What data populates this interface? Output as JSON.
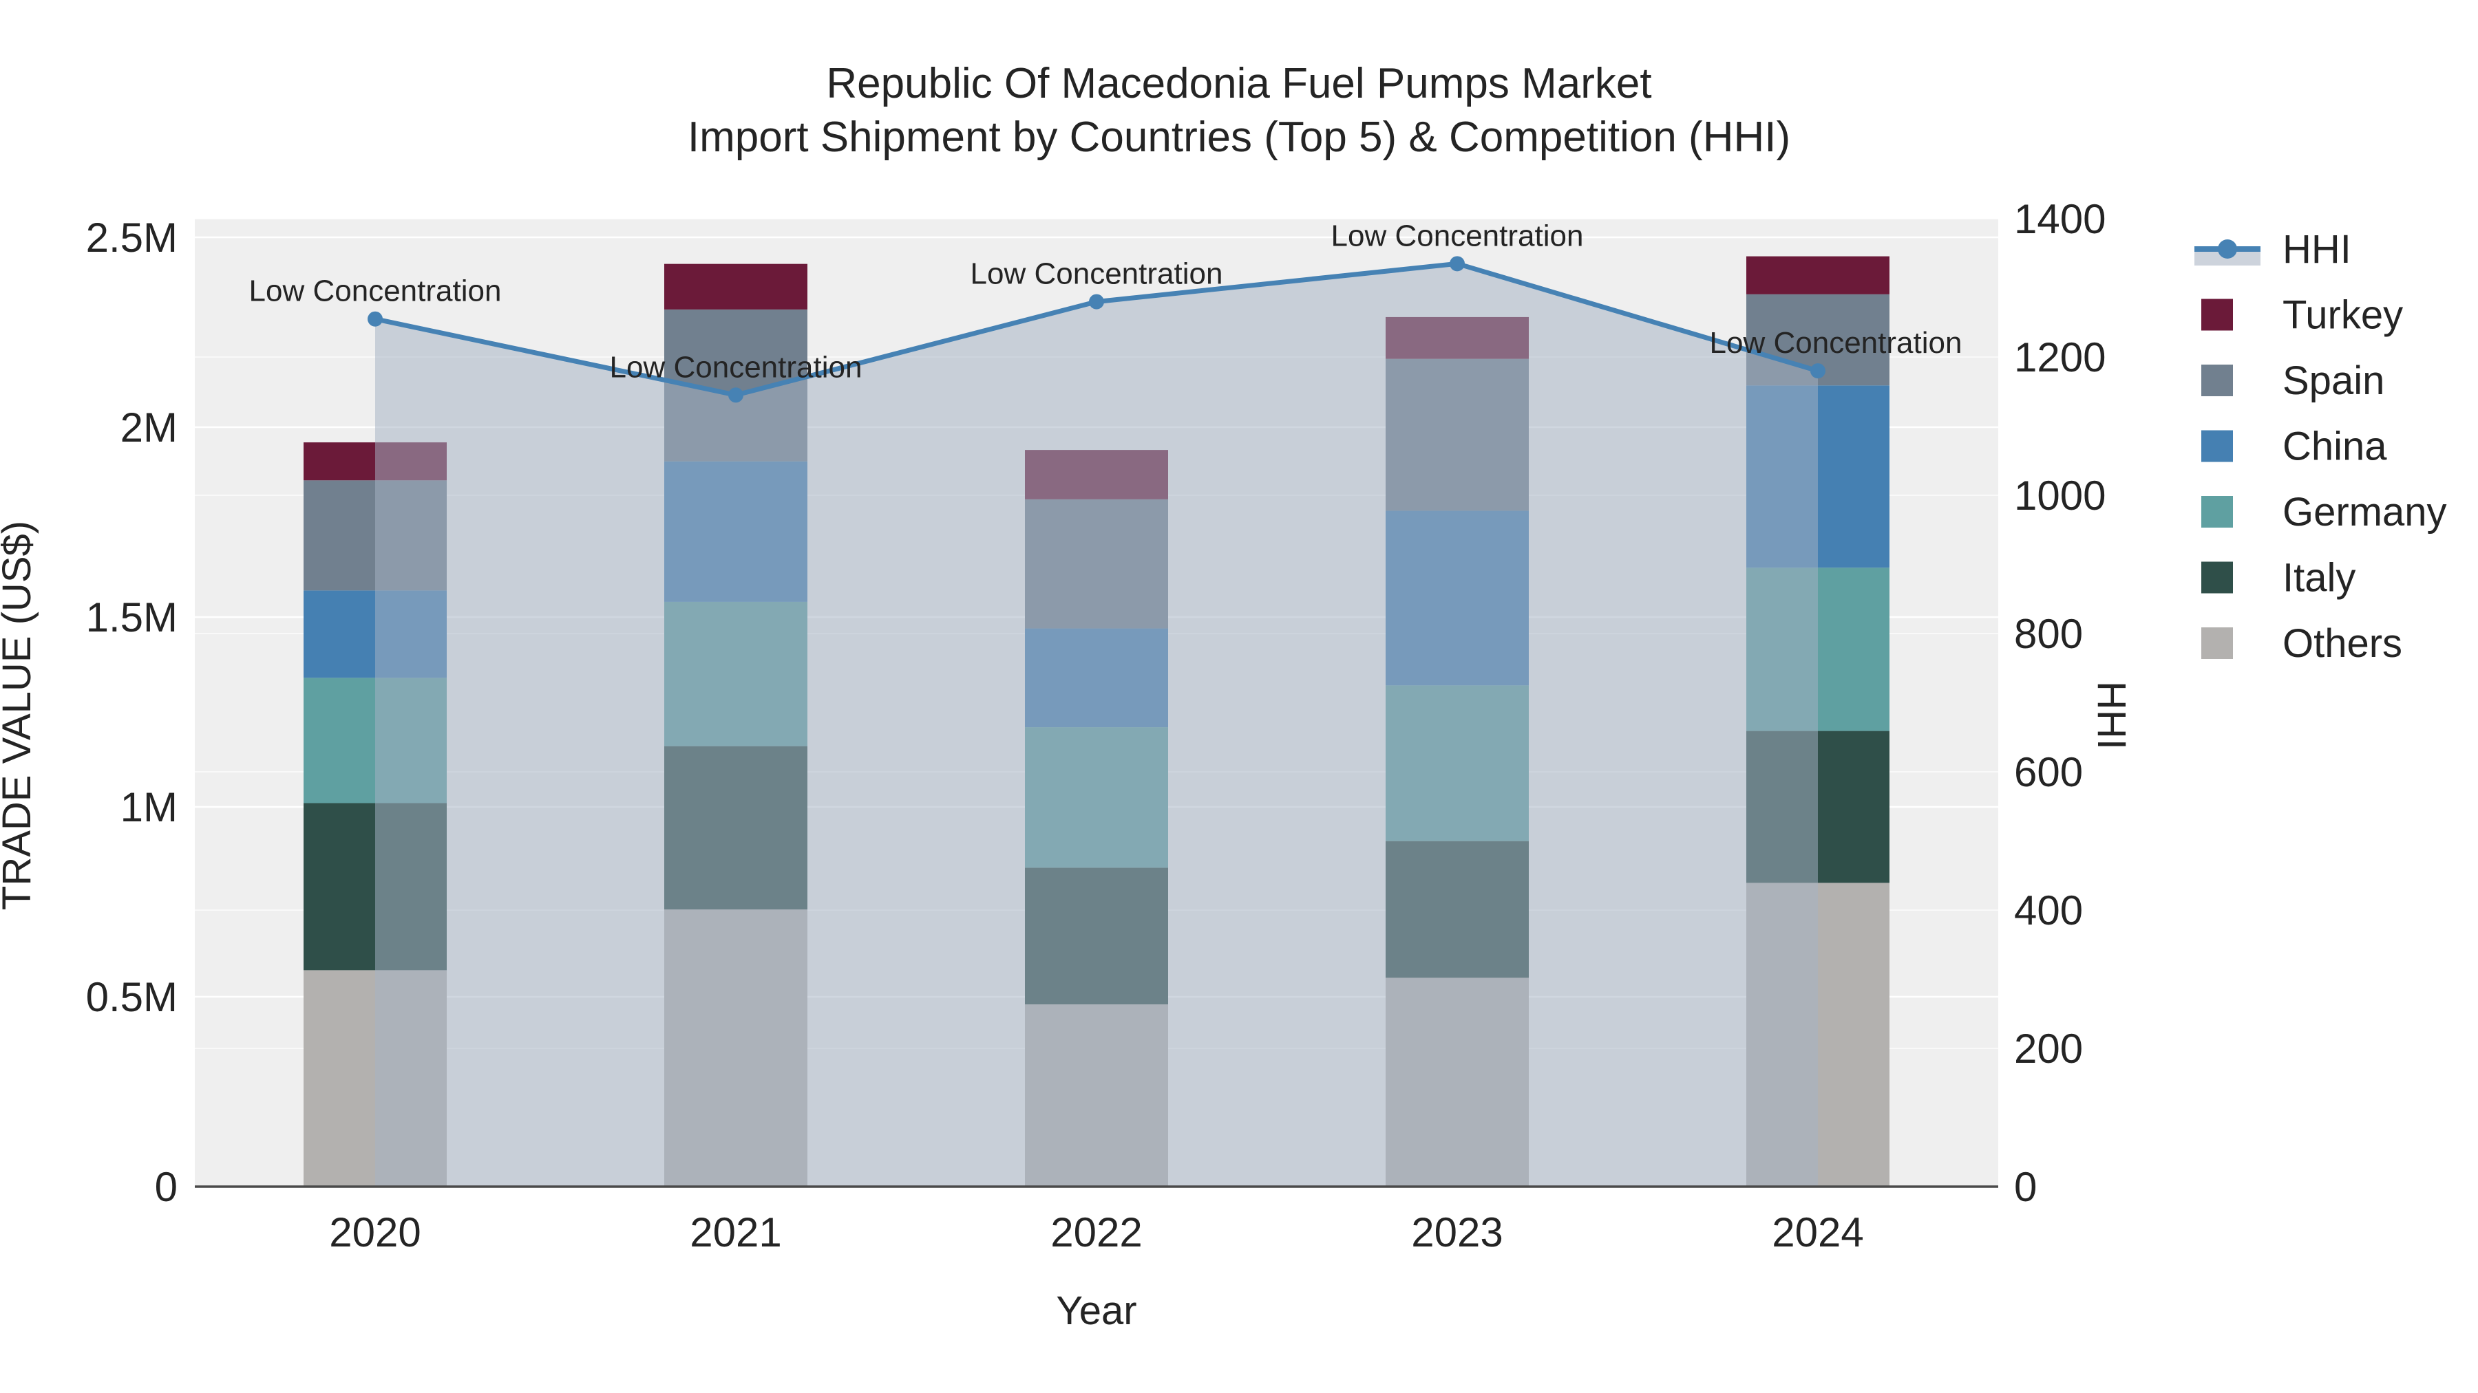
{
  "title": {
    "line1": "Republic Of Macedonia Fuel Pumps Market",
    "line2": "Import Shipment by Countries (Top 5) & Competition (HHI)"
  },
  "axes": {
    "x": {
      "title": "Year",
      "categories": [
        "2020",
        "2021",
        "2022",
        "2023",
        "2024"
      ]
    },
    "y_left": {
      "title": "TRADE VALUE (US$)",
      "tick_labels": [
        "0",
        "0.5M",
        "1M",
        "1.5M",
        "2M",
        "2.5M"
      ],
      "tick_values_m": [
        0,
        0.5,
        1,
        1.5,
        2,
        2.5
      ],
      "max_m": 2.55
    },
    "y_right": {
      "title": "HHI",
      "tick_labels": [
        "0",
        "200",
        "400",
        "600",
        "800",
        "1000",
        "1200",
        "1400"
      ],
      "tick_values": [
        0,
        200,
        400,
        600,
        800,
        1000,
        1200,
        1400
      ],
      "max": 1400
    }
  },
  "legend": {
    "items": [
      {
        "label": "HHI",
        "type": "line",
        "color": "#4682B4",
        "band_color": "#CDD3DC"
      },
      {
        "label": "Turkey",
        "type": "swatch",
        "color": "#6B1A39"
      },
      {
        "label": "Spain",
        "type": "swatch",
        "color": "#71808F"
      },
      {
        "label": "China",
        "type": "swatch",
        "color": "#4580B2"
      },
      {
        "label": "Germany",
        "type": "swatch",
        "color": "#5FA0A1"
      },
      {
        "label": "Italy",
        "type": "swatch",
        "color": "#2F4F49"
      },
      {
        "label": "Others",
        "type": "swatch",
        "color": "#B3B1AF"
      }
    ]
  },
  "chart_data": {
    "type": "bar+line",
    "title": "Republic Of Macedonia Fuel Pumps Market — Import Shipment by Countries (Top 5) & Competition (HHI)",
    "categories": [
      "2020",
      "2021",
      "2022",
      "2023",
      "2024"
    ],
    "xlabel": "Year",
    "ylabel_left": "TRADE VALUE (US$)",
    "ylabel_right": "HHI",
    "ylim_left_musd": [
      0,
      2.55
    ],
    "ylim_right": [
      0,
      1400
    ],
    "grid": true,
    "legend_position": "right",
    "bar_stack_order_bottom_to_top": [
      "Others",
      "Italy",
      "Germany",
      "China",
      "Spain",
      "Turkey"
    ],
    "series": [
      {
        "name": "Others",
        "color": "#B3B1AF",
        "values_musd": [
          0.57,
          0.73,
          0.48,
          0.55,
          0.8
        ]
      },
      {
        "name": "Italy",
        "color": "#2F4F49",
        "values_musd": [
          0.44,
          0.43,
          0.36,
          0.36,
          0.4
        ]
      },
      {
        "name": "Germany",
        "color": "#5FA0A1",
        "values_musd": [
          0.33,
          0.38,
          0.37,
          0.41,
          0.43
        ]
      },
      {
        "name": "China",
        "color": "#4580B2",
        "values_musd": [
          0.23,
          0.37,
          0.26,
          0.46,
          0.48
        ]
      },
      {
        "name": "Spain",
        "color": "#71808F",
        "values_musd": [
          0.29,
          0.4,
          0.34,
          0.4,
          0.24
        ]
      },
      {
        "name": "Turkey",
        "color": "#6B1A39",
        "values_musd": [
          0.1,
          0.12,
          0.13,
          0.11,
          0.1
        ]
      }
    ],
    "bar_totals_musd": [
      1.96,
      2.43,
      1.94,
      2.29,
      2.45
    ],
    "line": {
      "name": "HHI",
      "axis": "right",
      "color": "#4682B4",
      "fill_color": "rgba(165,178,196,0.52)",
      "values": [
        1255,
        1145,
        1280,
        1335,
        1180
      ]
    },
    "annotations": [
      {
        "text": "Low Concentration",
        "category": "2020"
      },
      {
        "text": "Low Concentration",
        "category": "2021"
      },
      {
        "text": "Low Concentration",
        "category": "2022"
      },
      {
        "text": "Low Concentration",
        "category": "2023"
      },
      {
        "text": "Low Concentration",
        "category": "2024"
      }
    ]
  },
  "colors": {
    "plot_background": "#EFEFEF",
    "gridline": "#FFFFFF",
    "axis_line": "#4A4A4A",
    "text": "#242424"
  }
}
